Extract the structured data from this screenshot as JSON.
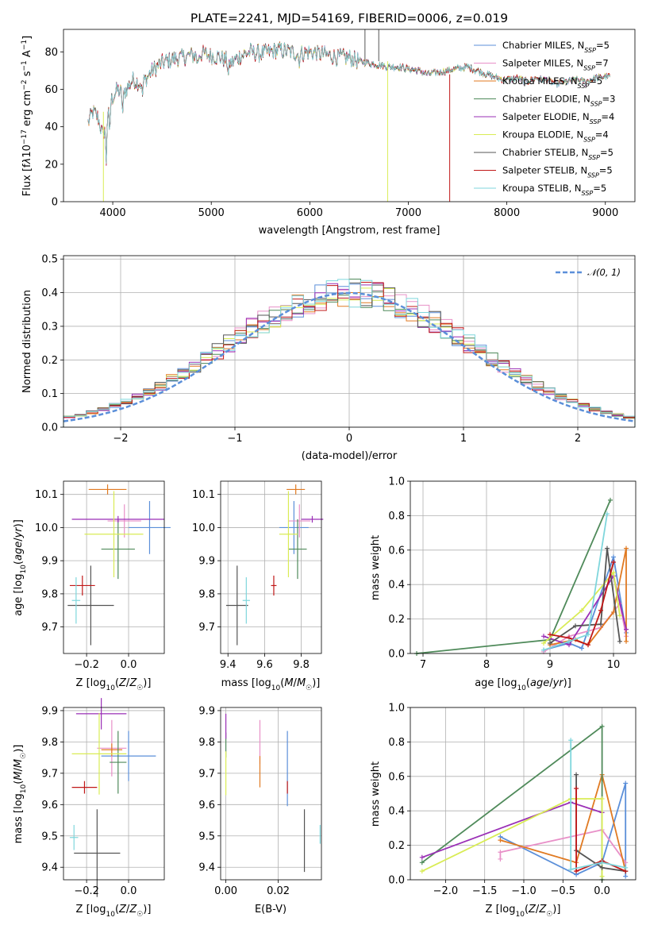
{
  "chart_data": [
    {
      "id": "spectrum",
      "type": "line",
      "title": "PLATE=2241, MJD=54169, FIBERID=0006, z=0.019",
      "xlabel": "wavelength [Angstrom, rest frame]",
      "ylabel": "Flux [f_λ10^-17 erg cm^-2 s^-1 A^-1]",
      "xlim": [
        3500,
        9300
      ],
      "ylim": [
        0,
        92
      ],
      "xticks": [
        4000,
        5000,
        6000,
        7000,
        8000,
        9000
      ],
      "yticks": [
        0,
        20,
        40,
        60,
        80
      ],
      "legend_position": "upper-right",
      "series": [
        {
          "name": "Chabrier MILES, N_SSP=5",
          "color": "#5b8fd9"
        },
        {
          "name": "Salpeter MILES, N_SSP=7",
          "color": "#e890c8"
        },
        {
          "name": "Kroupa MILES, N_SSP=5",
          "color": "#e07a22"
        },
        {
          "name": "Chabrier ELODIE, N_SSP=3",
          "color": "#4f8a5a"
        },
        {
          "name": "Salpeter ELODIE, N_SSP=4",
          "color": "#9a2fb6"
        },
        {
          "name": "Kroupa ELODIE, N_SSP=4",
          "color": "#d9ec55"
        },
        {
          "name": "Chabrier STELIB, N_SSP=5",
          "color": "#555555"
        },
        {
          "name": "Salpeter STELIB, N_SSP=5",
          "color": "#c01818"
        },
        {
          "name": "Kroupa STELIB, N_SSP=5",
          "color": "#7fd6dc"
        }
      ],
      "continuum": [
        [
          3750,
          42
        ],
        [
          3800,
          48
        ],
        [
          3850,
          45
        ],
        [
          3900,
          35
        ],
        [
          3950,
          48
        ],
        [
          4000,
          56
        ],
        [
          4050,
          60
        ],
        [
          4100,
          57
        ],
        [
          4200,
          65
        ],
        [
          4300,
          63
        ],
        [
          4400,
          70
        ],
        [
          4500,
          74
        ],
        [
          4600,
          76
        ],
        [
          4700,
          77
        ],
        [
          4800,
          78
        ],
        [
          4900,
          79
        ],
        [
          5000,
          78
        ],
        [
          5100,
          77
        ],
        [
          5200,
          74
        ],
        [
          5300,
          78
        ],
        [
          5400,
          80
        ],
        [
          5500,
          79
        ],
        [
          5600,
          80
        ],
        [
          5700,
          81
        ],
        [
          5800,
          80
        ],
        [
          5900,
          79
        ],
        [
          6000,
          80
        ],
        [
          6100,
          79
        ],
        [
          6200,
          78
        ],
        [
          6300,
          77
        ],
        [
          6400,
          77
        ],
        [
          6500,
          75
        ],
        [
          6600,
          74
        ],
        [
          6700,
          73
        ],
        [
          6800,
          72
        ],
        [
          6900,
          72
        ],
        [
          7000,
          71
        ],
        [
          7100,
          70
        ],
        [
          7200,
          68
        ],
        [
          7300,
          69
        ],
        [
          7400,
          70
        ],
        [
          7500,
          71
        ],
        [
          7600,
          72
        ],
        [
          7700,
          70
        ],
        [
          7800,
          68
        ],
        [
          7900,
          66
        ],
        [
          8000,
          65
        ],
        [
          8100,
          66
        ],
        [
          8200,
          64
        ],
        [
          8300,
          66
        ],
        [
          8400,
          65
        ],
        [
          8500,
          63
        ],
        [
          8600,
          64
        ],
        [
          8700,
          65
        ],
        [
          8800,
          64
        ],
        [
          8900,
          66
        ],
        [
          9000,
          67
        ]
      ]
    },
    {
      "id": "residuals",
      "type": "bar",
      "xlabel": "(data-model)/error",
      "ylabel": "Normed distribution",
      "xlim": [
        -2.5,
        2.5
      ],
      "ylim": [
        0,
        0.51
      ],
      "xticks": [
        -2,
        -1,
        0,
        1,
        2
      ],
      "yticks": [
        0.0,
        0.1,
        0.2,
        0.3,
        0.4,
        0.5
      ],
      "bin_width": 0.1,
      "legend_position": "upper-right",
      "reference": {
        "name": "N(0,1)",
        "label": "𝒩(0, 1)",
        "color": "#5b8fd9",
        "style": "dashed"
      }
    },
    {
      "id": "age_vs_Z",
      "type": "scatter",
      "xlabel": "Z [log10(Z/Z☉)]",
      "ylabel": "age [log10(age/yr)]",
      "xlim": [
        -0.31,
        0.17
      ],
      "ylim": [
        9.62,
        10.14
      ],
      "xticks": [
        -0.2,
        0.0
      ],
      "yticks": [
        9.7,
        9.8,
        9.9,
        10.0,
        10.1
      ],
      "points": [
        {
          "color": "#5b8fd9",
          "x": 0.1,
          "y": 10.0,
          "xerr": 0.1,
          "yerr": 0.08
        },
        {
          "color": "#e890c8",
          "x": -0.02,
          "y": 10.02,
          "xerr": 0.08,
          "yerr": 0.05
        },
        {
          "color": "#e07a22",
          "x": -0.1,
          "y": 10.115,
          "xerr": 0.09,
          "yerr": 0.015
        },
        {
          "color": "#4f8a5a",
          "x": -0.05,
          "y": 9.935,
          "xerr": 0.08,
          "yerr": 0.09
        },
        {
          "color": "#9a2fb6",
          "x": -0.05,
          "y": 10.025,
          "xerr": 0.22,
          "yerr": 0.01
        },
        {
          "color": "#d9ec55",
          "x": -0.07,
          "y": 9.98,
          "xerr": 0.14,
          "yerr": 0.13
        },
        {
          "color": "#555555",
          "x": -0.18,
          "y": 9.765,
          "xerr": 0.11,
          "yerr": 0.12
        },
        {
          "color": "#c01818",
          "x": -0.22,
          "y": 9.825,
          "xerr": 0.06,
          "yerr": 0.03
        },
        {
          "color": "#7fd6dc",
          "x": -0.25,
          "y": 9.78,
          "xerr": 0.02,
          "yerr": 0.07
        }
      ]
    },
    {
      "id": "age_vs_mass",
      "type": "scatter",
      "xlabel": "mass [log10(M/M☉)]",
      "ylabel": "",
      "xlim": [
        9.36,
        9.91
      ],
      "ylim": [
        9.62,
        10.14
      ],
      "xticks": [
        9.4,
        9.6,
        9.8
      ],
      "yticks": [
        9.7,
        9.8,
        9.9,
        10.0,
        10.1
      ],
      "points": [
        {
          "color": "#5b8fd9",
          "x": 9.76,
          "y": 10.0,
          "xerr": 0.08,
          "yerr": 0.08
        },
        {
          "color": "#e890c8",
          "x": 9.79,
          "y": 10.02,
          "xerr": 0.06,
          "yerr": 0.05
        },
        {
          "color": "#e07a22",
          "x": 9.77,
          "y": 10.115,
          "xerr": 0.05,
          "yerr": 0.015
        },
        {
          "color": "#4f8a5a",
          "x": 9.78,
          "y": 9.935,
          "xerr": 0.05,
          "yerr": 0.09
        },
        {
          "color": "#9a2fb6",
          "x": 9.86,
          "y": 10.025,
          "xerr": 0.06,
          "yerr": 0.01
        },
        {
          "color": "#d9ec55",
          "x": 9.73,
          "y": 9.98,
          "xerr": 0.05,
          "yerr": 0.13
        },
        {
          "color": "#555555",
          "x": 9.45,
          "y": 9.765,
          "xerr": 0.06,
          "yerr": 0.12
        },
        {
          "color": "#c01818",
          "x": 9.65,
          "y": 9.825,
          "xerr": 0.015,
          "yerr": 0.03
        },
        {
          "color": "#7fd6dc",
          "x": 9.5,
          "y": 9.78,
          "xerr": 0.02,
          "yerr": 0.07
        }
      ]
    },
    {
      "id": "mass_weight_vs_age",
      "type": "line",
      "xlabel": "age [log10(age/yr)]",
      "ylabel": "mass weight",
      "xlim": [
        6.8,
        10.35
      ],
      "ylim": [
        0,
        1
      ],
      "xticks": [
        7,
        8,
        9,
        10
      ],
      "yticks": [
        0.0,
        0.2,
        0.4,
        0.6,
        0.8,
        1.0
      ],
      "series": [
        {
          "color": "#5b8fd9",
          "x": [
            8.9,
            9.3,
            9.5,
            10.0,
            10.2
          ],
          "y": [
            0.02,
            0.06,
            0.03,
            0.56,
            0.12
          ]
        },
        {
          "color": "#e890c8",
          "x": [
            8.9,
            9.3,
            9.8,
            10.1,
            10.2
          ],
          "y": [
            0.01,
            0.1,
            0.15,
            0.29,
            0.1
          ]
        },
        {
          "color": "#e07a22",
          "x": [
            9.0,
            9.4,
            9.6,
            10.0,
            10.2,
            10.2
          ],
          "y": [
            0.05,
            0.08,
            0.05,
            0.24,
            0.61,
            0.07
          ]
        },
        {
          "color": "#4f8a5a",
          "x": [
            6.9,
            9.0,
            9.95
          ],
          "y": [
            0.0,
            0.08,
            0.89
          ]
        },
        {
          "color": "#9a2fb6",
          "x": [
            8.9,
            9.3,
            10.0,
            10.2
          ],
          "y": [
            0.1,
            0.05,
            0.45,
            0.14
          ]
        },
        {
          "color": "#d9ec55",
          "x": [
            8.9,
            9.5,
            10.0,
            10.1
          ],
          "y": [
            0.06,
            0.25,
            0.47,
            0.22
          ]
        },
        {
          "color": "#555555",
          "x": [
            9.0,
            9.4,
            9.8,
            9.9,
            10.1
          ],
          "y": [
            0.06,
            0.16,
            0.17,
            0.61,
            0.07
          ]
        },
        {
          "color": "#c01818",
          "x": [
            9.0,
            9.3,
            9.6,
            9.8,
            10.0
          ],
          "y": [
            0.11,
            0.09,
            0.05,
            0.25,
            0.53
          ]
        },
        {
          "color": "#7fd6dc",
          "x": [
            8.9,
            9.3,
            9.6,
            9.9
          ],
          "y": [
            0.02,
            0.07,
            0.11,
            0.81
          ]
        }
      ]
    },
    {
      "id": "mass_vs_Z",
      "type": "scatter",
      "xlabel": "Z [log10(Z/Z☉)]",
      "ylabel": "mass [log10(M/M☉)]",
      "xlim": [
        -0.31,
        0.17
      ],
      "ylim": [
        9.36,
        9.91
      ],
      "xticks": [
        -0.2,
        0.0
      ],
      "yticks": [
        9.4,
        9.5,
        9.6,
        9.7,
        9.8,
        9.9
      ],
      "points": [
        {
          "color": "#5b8fd9",
          "x": 0.0,
          "y": 9.755,
          "xerr": 0.13,
          "yerr": 0.08
        },
        {
          "color": "#e890c8",
          "x": -0.08,
          "y": 9.78,
          "xerr": 0.07,
          "yerr": 0.09
        },
        {
          "color": "#e07a22",
          "x": -0.08,
          "y": 9.775,
          "xerr": 0.05,
          "yerr": 0.02
        },
        {
          "color": "#4f8a5a",
          "x": -0.05,
          "y": 9.735,
          "xerr": 0.04,
          "yerr": 0.1
        },
        {
          "color": "#9a2fb6",
          "x": -0.13,
          "y": 9.89,
          "xerr": 0.12,
          "yerr": 0.05
        },
        {
          "color": "#d9ec55",
          "x": -0.14,
          "y": 9.762,
          "xerr": 0.13,
          "yerr": 0.13
        },
        {
          "color": "#555555",
          "x": -0.15,
          "y": 9.445,
          "xerr": 0.11,
          "yerr": 0.14
        },
        {
          "color": "#c01818",
          "x": -0.21,
          "y": 9.655,
          "xerr": 0.06,
          "yerr": 0.02
        },
        {
          "color": "#7fd6dc",
          "x": -0.26,
          "y": 9.495,
          "xerr": 0.02,
          "yerr": 0.04
        }
      ]
    },
    {
      "id": "mass_vs_ebv",
      "type": "scatter",
      "xlabel": "E(B-V)",
      "ylabel": "",
      "xlim": [
        -0.002,
        0.0365
      ],
      "ylim": [
        9.36,
        9.91
      ],
      "xticks": [
        0.0,
        0.02
      ],
      "yticks": [
        9.4,
        9.5,
        9.6,
        9.7,
        9.8,
        9.9
      ],
      "points": [
        {
          "color": "#5b8fd9",
          "x": 0.0235,
          "y": 9.715,
          "yerr": 0.12
        },
        {
          "color": "#e890c8",
          "x": 0.013,
          "y": 9.8,
          "yerr": 0.07
        },
        {
          "color": "#e07a22",
          "x": 0.013,
          "y": 9.705,
          "yerr": 0.05
        },
        {
          "color": "#4f8a5a",
          "x": 0.0,
          "y": 9.79,
          "yerr": 0.04
        },
        {
          "color": "#9a2fb6",
          "x": 0.0,
          "y": 9.85,
          "yerr": 0.04
        },
        {
          "color": "#d9ec55",
          "x": 0.0,
          "y": 9.7,
          "yerr": 0.07
        },
        {
          "color": "#555555",
          "x": 0.03,
          "y": 9.485,
          "yerr": 0.1
        },
        {
          "color": "#c01818",
          "x": 0.0235,
          "y": 9.655,
          "yerr": 0.02
        },
        {
          "color": "#7fd6dc",
          "x": 0.036,
          "y": 9.505,
          "yerr": 0.03
        }
      ]
    },
    {
      "id": "mass_weight_vs_Z",
      "type": "line",
      "xlabel": "Z [log10(Z/Z☉)]",
      "ylabel": "mass weight",
      "xlim": [
        -2.45,
        0.43
      ],
      "ylim": [
        0,
        1
      ],
      "xticks": [
        -2.0,
        -1.5,
        -1.0,
        -0.5,
        0.0
      ],
      "yticks": [
        0.0,
        0.2,
        0.4,
        0.6,
        0.8,
        1.0
      ],
      "series": [
        {
          "color": "#5b8fd9",
          "x": [
            -1.3,
            -0.33,
            0.0,
            0.3,
            0.3
          ],
          "y": [
            0.25,
            0.03,
            0.1,
            0.56,
            0.02
          ]
        },
        {
          "color": "#e890c8",
          "x": [
            -1.3,
            -1.3,
            0.0,
            0.3
          ],
          "y": [
            0.12,
            0.16,
            0.29,
            0.1
          ]
        },
        {
          "color": "#e07a22",
          "x": [
            -1.3,
            -0.33,
            0.0,
            0.3
          ],
          "y": [
            0.23,
            0.1,
            0.61,
            0.05
          ]
        },
        {
          "color": "#4f8a5a",
          "x": [
            -2.3,
            0.0,
            0.0
          ],
          "y": [
            0.1,
            0.89,
            0.0
          ]
        },
        {
          "color": "#9a2fb6",
          "x": [
            -2.3,
            -0.4,
            0.0
          ],
          "y": [
            0.13,
            0.45,
            0.39
          ]
        },
        {
          "color": "#d9ec55",
          "x": [
            -2.3,
            -0.4,
            0.0,
            0.0
          ],
          "y": [
            0.05,
            0.47,
            0.47,
            0.02
          ]
        },
        {
          "color": "#555555",
          "x": [
            -0.33,
            -0.33,
            0.0,
            0.3
          ],
          "y": [
            0.61,
            0.17,
            0.07,
            0.05
          ]
        },
        {
          "color": "#c01818",
          "x": [
            -0.33,
            -0.33,
            0.0,
            0.3
          ],
          "y": [
            0.53,
            0.05,
            0.11,
            0.05
          ]
        },
        {
          "color": "#7fd6dc",
          "x": [
            -0.4,
            -0.4,
            0.0,
            0.3
          ],
          "y": [
            0.81,
            0.06,
            0.1,
            0.07
          ]
        }
      ]
    }
  ]
}
